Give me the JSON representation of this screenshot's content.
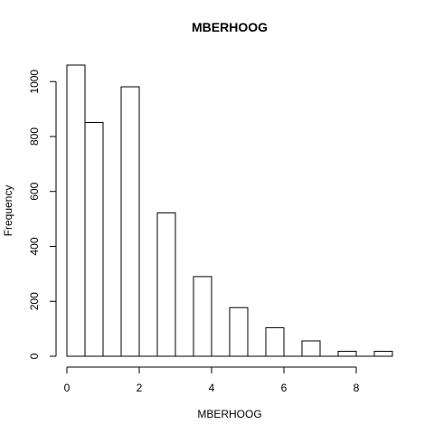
{
  "chart_data": {
    "type": "bar",
    "title": "MBERHOOG",
    "xlabel": "MBERHOOG",
    "ylabel": "Frequency",
    "bins": [
      [
        0,
        0.5
      ],
      [
        0.5,
        1
      ],
      [
        1,
        1.5
      ],
      [
        1.5,
        2
      ],
      [
        2,
        2.5
      ],
      [
        2.5,
        3
      ],
      [
        3,
        3.5
      ],
      [
        3.5,
        4
      ],
      [
        4,
        4.5
      ],
      [
        4.5,
        5
      ],
      [
        5,
        5.5
      ],
      [
        5.5,
        6
      ],
      [
        6,
        6.5
      ],
      [
        6.5,
        7
      ],
      [
        7,
        7.5
      ],
      [
        7.5,
        8
      ],
      [
        8,
        8.5
      ],
      [
        8.5,
        9
      ]
    ],
    "values": [
      1060,
      851,
      0,
      981,
      0,
      522,
      0,
      290,
      0,
      177,
      0,
      104,
      0,
      56,
      0,
      18,
      0,
      18
    ],
    "xlim": [
      0,
      9
    ],
    "ylim": [
      0,
      1060
    ],
    "xticks": [
      "0",
      "2",
      "4",
      "6",
      "8"
    ],
    "yticks": [
      "0",
      "200",
      "400",
      "600",
      "800",
      "1000"
    ],
    "grid": false,
    "legend": "none",
    "colors": {
      "fill": "#ffffff",
      "stroke": "#000000"
    }
  }
}
